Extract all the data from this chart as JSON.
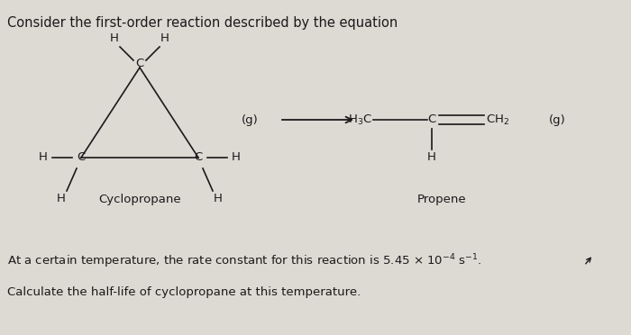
{
  "title_text": "Consider the first-order reaction described by the equation",
  "title_fontsize": 10.5,
  "bg_color": "#ddd9d3",
  "text_color": "#1a1a1a",
  "body_text2": "Calculate the half-life of cyclopropane at this temperature.",
  "label_cyclopropane": "Cyclopropane",
  "label_propene": "Propene",
  "label_g_left": "(g)",
  "label_g_right": "(g)",
  "fig_width": 7.0,
  "fig_height": 3.72,
  "dpi": 100
}
